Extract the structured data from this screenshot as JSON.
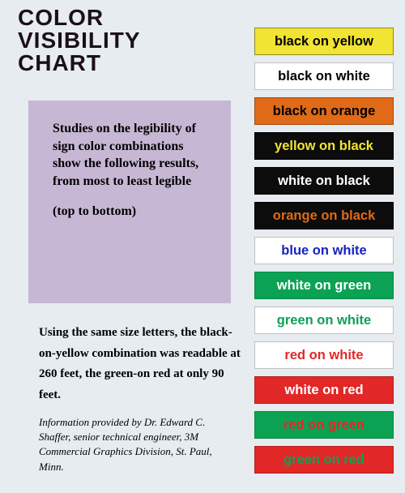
{
  "title_lines": [
    "COLOR",
    "VISIBILITY",
    "CHART"
  ],
  "blurb": "Studies on the legibility of sign color combinations show the following results, from most to least legible",
  "blurb_sub": "(top to bottom)",
  "footnote": "Using the same size letters, the black-on-yellow combination was readable at 260 feet, the green-on red at only 90 feet.",
  "credit": "Information provided by Dr. Edward C. Shaffer, senior technical engineer, 3M Commercial Graphics Division, St. Paul, Minn.",
  "swatch_font_size": 16.5,
  "swatch_height": 34,
  "swatch_gap": 9,
  "swatches": [
    {
      "label": "black on yellow",
      "bg": "#f1e432",
      "fg": "#000000",
      "border": "#8a8a2a"
    },
    {
      "label": "black on white",
      "bg": "#ffffff",
      "fg": "#000000",
      "border": "#bfbfbf"
    },
    {
      "label": "black on orange",
      "bg": "#e06a17",
      "fg": "#000000",
      "border": "#a04a10"
    },
    {
      "label": "yellow on black",
      "bg": "#0c0c0c",
      "fg": "#f1e432",
      "border": "#000000"
    },
    {
      "label": "white on black",
      "bg": "#0c0c0c",
      "fg": "#ffffff",
      "border": "#000000"
    },
    {
      "label": "orange on black",
      "bg": "#0c0c0c",
      "fg": "#e06a17",
      "border": "#000000"
    },
    {
      "label": "blue on white",
      "bg": "#ffffff",
      "fg": "#1522c2",
      "border": "#bfbfbf"
    },
    {
      "label": "white on green",
      "bg": "#0ba254",
      "fg": "#ffffff",
      "border": "#078a45"
    },
    {
      "label": "green on white",
      "bg": "#ffffff",
      "fg": "#0ba254",
      "border": "#bfbfbf"
    },
    {
      "label": "red on white",
      "bg": "#ffffff",
      "fg": "#e22827",
      "border": "#bfbfbf"
    },
    {
      "label": "white on red",
      "bg": "#e22827",
      "fg": "#ffffff",
      "border": "#b01f1f"
    },
    {
      "label": "red on green",
      "bg": "#0ba254",
      "fg": "#e22827",
      "border": "#078a45"
    },
    {
      "label": "green on red",
      "bg": "#e22827",
      "fg": "#0ba254",
      "border": "#b01f1f"
    }
  ]
}
